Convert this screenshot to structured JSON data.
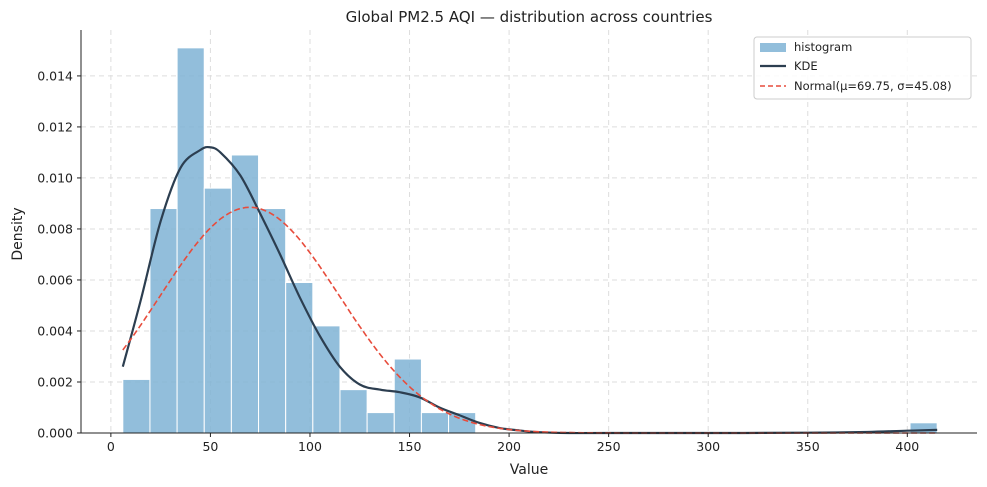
{
  "chart_data": {
    "type": "bar",
    "title": "Global PM2.5 AQI — distribution across countries",
    "xlabel": "Value",
    "ylabel": "Density",
    "xlim": [
      -15,
      435
    ],
    "ylim": [
      0,
      0.0158
    ],
    "grid": true,
    "legend_position": "top-right",
    "x_ticks": [
      0,
      50,
      100,
      150,
      200,
      250,
      300,
      350,
      400
    ],
    "y_ticks": [
      0.0,
      0.002,
      0.004,
      0.006,
      0.008,
      0.01,
      0.012,
      0.014
    ],
    "x_tick_labels": [
      "0",
      "50",
      "100",
      "150",
      "200",
      "250",
      "300",
      "350",
      "400"
    ],
    "y_tick_labels": [
      "0.000",
      "0.002",
      "0.004",
      "0.006",
      "0.008",
      "0.010",
      "0.012",
      "0.014"
    ],
    "histogram": {
      "name": "histogram",
      "color": "#7fb3d5",
      "bin_edges": [
        6,
        19.63,
        33.27,
        46.9,
        60.53,
        74.17,
        87.8,
        101.43,
        115.07,
        128.7,
        142.33,
        155.97,
        169.6,
        183.23,
        196.87,
        210.5,
        224.13,
        237.77,
        251.4,
        265.03,
        278.67,
        292.3,
        305.93,
        319.57,
        333.2,
        346.83,
        360.47,
        374.1,
        387.73,
        401.37,
        415
      ],
      "densities": [
        0.0021,
        0.0088,
        0.0151,
        0.0096,
        0.0109,
        0.0088,
        0.0059,
        0.0042,
        0.0017,
        0.0008,
        0.0029,
        0.0008,
        0.0008,
        0,
        0,
        0,
        0,
        0,
        0,
        0,
        0,
        0,
        0,
        0,
        0,
        0,
        0,
        0,
        0,
        0.0004
      ]
    },
    "series": [
      {
        "name": "KDE",
        "color": "#2c3e50",
        "x": [
          6,
          15,
          25,
          35,
          45,
          50,
          55,
          65,
          75,
          85,
          95,
          105,
          115,
          125,
          135,
          145,
          155,
          165,
          175,
          185,
          195,
          205,
          215,
          230,
          250,
          300,
          350,
          380,
          400,
          415
        ],
        "y": [
          0.0026,
          0.0052,
          0.0083,
          0.0104,
          0.0111,
          0.0112,
          0.011,
          0.0101,
          0.0086,
          0.007,
          0.0053,
          0.0038,
          0.0026,
          0.0019,
          0.0017,
          0.0016,
          0.0014,
          0.001,
          0.0007,
          0.0004,
          0.0002,
          0.0001,
          3e-05,
          0.0,
          0.0,
          0.0,
          1e-05,
          4e-05,
          9e-05,
          0.00012
        ]
      },
      {
        "name": "Normal(μ=69.75, σ=45.08)",
        "color": "#e74c3c",
        "dashed": true,
        "mu": 69.75,
        "sigma": 45.08,
        "x_range": [
          6,
          415
        ]
      }
    ],
    "legend": [
      {
        "label": "histogram",
        "kind": "patch",
        "color": "#7fb3d5"
      },
      {
        "label": "KDE",
        "kind": "line",
        "color": "#2c3e50"
      },
      {
        "label": "Normal(μ=69.75, σ=45.08)",
        "kind": "dashed",
        "color": "#e74c3c"
      }
    ]
  }
}
